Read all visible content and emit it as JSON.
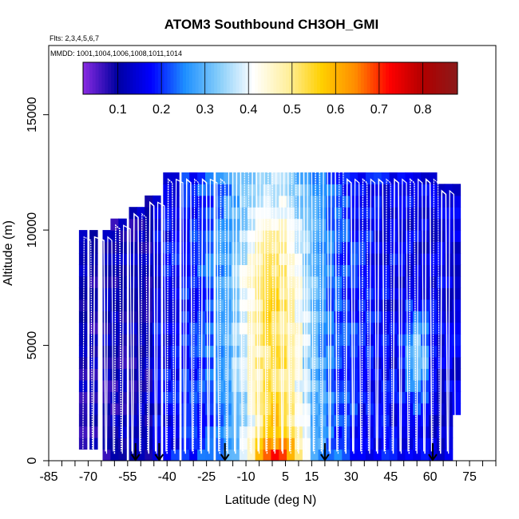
{
  "chart_data": {
    "type": "heatmap",
    "title": "ATOM3 Southbound CH3OH_GMI",
    "flights_note": "Flts: 2,3,4,5,6,7",
    "mmdd_note": "MMDD: 1001,1004,1006,1008,1011,1014",
    "xlabel": "Latitude (deg N)",
    "ylabel": "Altitude (m)",
    "xlim": [
      -85,
      85
    ],
    "ylim": [
      0,
      18000
    ],
    "x_ticks": [
      -85,
      -70,
      -55,
      -40,
      -25,
      -10,
      5,
      15,
      30,
      45,
      60,
      75
    ],
    "x_minor_ticks": [
      -80,
      -75,
      -65,
      -60,
      -50,
      -45,
      -35,
      -30,
      -20,
      -15,
      -5,
      0,
      10,
      20,
      25,
      35,
      40,
      50,
      55,
      65,
      70,
      80,
      85
    ],
    "y_ticks": [
      0,
      5000,
      10000,
      15000
    ],
    "colorbar": {
      "range": [
        0.02,
        0.88
      ],
      "ticks": [
        0.1,
        0.2,
        0.3,
        0.4,
        0.5,
        0.6,
        0.7,
        0.8
      ],
      "tick_labels": [
        "0.1",
        "0.2",
        "0.3",
        "0.4",
        "0.5",
        "0.6",
        "0.7",
        "0.8"
      ],
      "colors": [
        "#8a2be2",
        "#0000a0",
        "#0000ff",
        "#1e90ff",
        "#87cefa",
        "#ffffff",
        "#fff0a0",
        "#ffd000",
        "#ff8c00",
        "#ff0000",
        "#b00000",
        "#8b1a1a"
      ]
    },
    "latitude_columns": [
      -72,
      -68,
      -63,
      -60,
      -57,
      -53,
      -50,
      -47,
      -44,
      -40,
      -37,
      -33,
      -30,
      -27,
      -24,
      -20,
      -17,
      -14,
      -11,
      -8,
      -5,
      -2,
      1,
      4,
      7,
      10,
      13,
      16,
      19,
      22,
      25,
      28,
      31,
      34,
      37,
      40,
      43,
      46,
      49,
      52,
      55,
      58,
      61,
      64,
      67,
      70
    ],
    "altitude_rows": [
      250,
      750,
      1250,
      1750,
      2250,
      2750,
      3250,
      3750,
      4250,
      4750,
      5250,
      5750,
      6250,
      6750,
      7250,
      7750,
      8250,
      8750,
      9250,
      9750,
      10250,
      10750,
      11250,
      11750,
      12250
    ],
    "column_top_altitude": [
      10000,
      10000,
      10000,
      10500,
      10500,
      11000,
      11000,
      11500,
      11500,
      12500,
      12500,
      12500,
      12500,
      12500,
      12500,
      12500,
      13000,
      13000,
      13000,
      13000,
      13000,
      13000,
      13000,
      13000,
      13000,
      13000,
      13000,
      13000,
      13000,
      13000,
      13000,
      12500,
      12500,
      12500,
      12500,
      12500,
      12500,
      12500,
      12500,
      12500,
      12500,
      12500,
      12500,
      12000,
      12000,
      12000
    ],
    "column_bottom_altitude": [
      500,
      500,
      0,
      0,
      0,
      0,
      0,
      0,
      0,
      0,
      0,
      0,
      0,
      0,
      0,
      0,
      0,
      0,
      0,
      0,
      0,
      0,
      0,
      0,
      0,
      0,
      0,
      0,
      0,
      0,
      0,
      0,
      0,
      0,
      0,
      0,
      0,
      0,
      0,
      0,
      0,
      0,
      0,
      0,
      0,
      2000
    ],
    "bottom_arrow_latitudes": [
      -52,
      -43,
      -18,
      20,
      61
    ]
  }
}
